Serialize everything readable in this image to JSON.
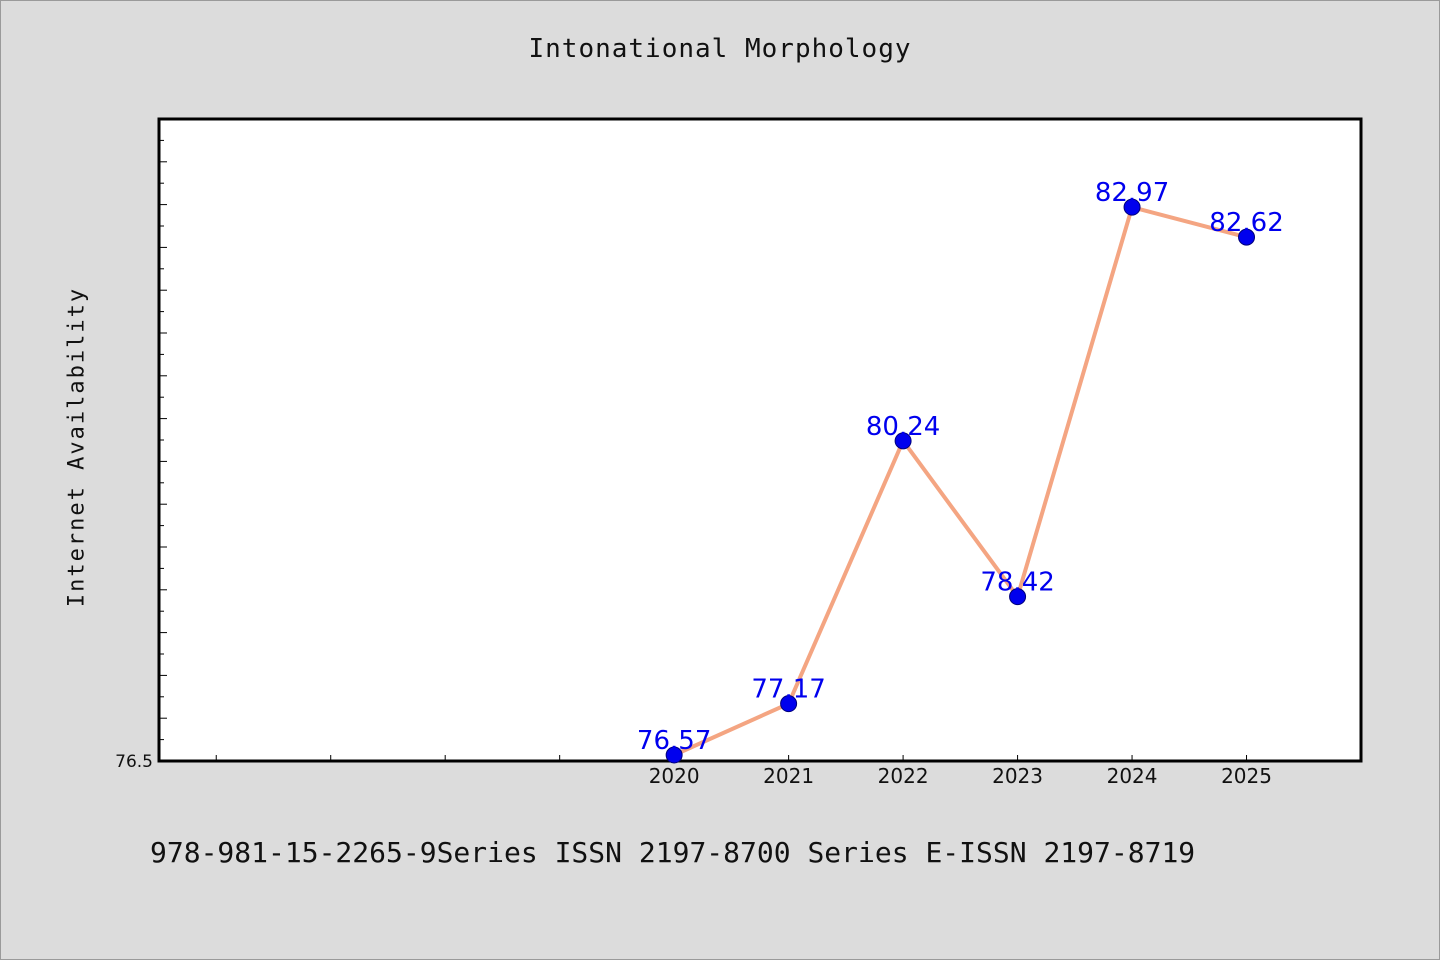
{
  "chart_data": {
    "type": "line",
    "title": "Intonational Morphology",
    "xlabel": "",
    "ylabel": "Internet Availability",
    "categories": [
      "2020",
      "2021",
      "2022",
      "2023",
      "2024",
      "2025"
    ],
    "series": [
      {
        "values": [
          76.57,
          77.17,
          80.24,
          78.42,
          82.97,
          82.62
        ]
      }
    ],
    "data_labels": [
      "76.57",
      "77.17",
      "80.24",
      "78.42",
      "82.97",
      "82.62"
    ],
    "x_range": [
      2015.5,
      2026
    ],
    "ylim": [
      76.5,
      84.0
    ],
    "y_tick_labels": [
      "76.5"
    ],
    "grid": false,
    "line_color": "#f4a582",
    "marker_color": "#0000ee",
    "label_color": "#0000ee"
  },
  "footer": "978-981-15-2265-9Series ISSN 2197-8700 Series E-ISSN 2197-8719"
}
